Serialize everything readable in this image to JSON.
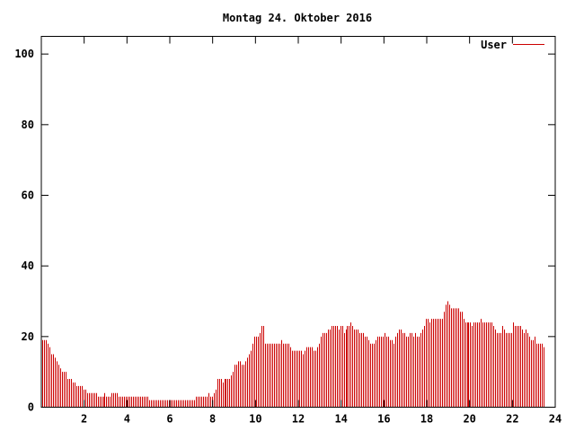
{
  "chart_data": {
    "type": "bar",
    "title": "Montag 24. Oktober 2016",
    "xlabel": "",
    "ylabel": "",
    "xlim": [
      0,
      24
    ],
    "ylim": [
      0,
      105
    ],
    "x_ticks": [
      2,
      4,
      6,
      8,
      10,
      12,
      14,
      16,
      18,
      20,
      22,
      24
    ],
    "x_tick_labels": [
      "2",
      "4",
      "6",
      "8",
      "10",
      "12",
      "14",
      "16",
      "18",
      "20",
      "22",
      "24"
    ],
    "y_ticks": [
      0,
      20,
      40,
      60,
      80,
      100
    ],
    "y_tick_labels": [
      "0",
      "20",
      "40",
      "60",
      "80",
      "100"
    ],
    "grid": false,
    "legend_position": "top-right",
    "series": [
      {
        "name": "User",
        "color": "#cc0000",
        "x_step_hours": 0.0833,
        "values": [
          19,
          19,
          19,
          18,
          17,
          15,
          15,
          14,
          13,
          12,
          11,
          10,
          10,
          10,
          8,
          8,
          8,
          7,
          7,
          6,
          6,
          6,
          6,
          5,
          5,
          4,
          4,
          4,
          4,
          4,
          4,
          3,
          3,
          3,
          3,
          4,
          3,
          3,
          3,
          4,
          4,
          4,
          4,
          3,
          3,
          3,
          3,
          3,
          3,
          3,
          3,
          3,
          3,
          3,
          3,
          3,
          3,
          3,
          3,
          3,
          2,
          2,
          2,
          2,
          2,
          2,
          2,
          2,
          2,
          2,
          2,
          2,
          2,
          2,
          2,
          2,
          2,
          2,
          2,
          2,
          2,
          2,
          2,
          2,
          2,
          2,
          3,
          3,
          3,
          3,
          3,
          3,
          3,
          4,
          3,
          3,
          4,
          5,
          8,
          8,
          8,
          7,
          8,
          8,
          8,
          8,
          9,
          10,
          12,
          12,
          13,
          13,
          12,
          12,
          13,
          14,
          15,
          16,
          18,
          20,
          20,
          20,
          21,
          23,
          23,
          18,
          18,
          18,
          18,
          18,
          18,
          18,
          18,
          18,
          19,
          18,
          18,
          18,
          18,
          17,
          16,
          16,
          16,
          16,
          16,
          16,
          15,
          16,
          17,
          17,
          17,
          17,
          16,
          16,
          17,
          18,
          20,
          21,
          21,
          21,
          22,
          22,
          23,
          23,
          23,
          23,
          22,
          23,
          23,
          21,
          22,
          23,
          23,
          24,
          23,
          22,
          22,
          22,
          21,
          21,
          21,
          20,
          20,
          19,
          18,
          18,
          18,
          19,
          20,
          20,
          20,
          20,
          21,
          20,
          20,
          19,
          19,
          18,
          20,
          21,
          22,
          22,
          21,
          21,
          20,
          20,
          21,
          21,
          20,
          21,
          20,
          20,
          21,
          22,
          23,
          25,
          25,
          24,
          25,
          25,
          25,
          25,
          25,
          25,
          25,
          27,
          29,
          30,
          29,
          28,
          28,
          28,
          28,
          28,
          27,
          27,
          25,
          24,
          24,
          24,
          24,
          23,
          24,
          24,
          24,
          24,
          25,
          24,
          24,
          24,
          24,
          24,
          24,
          23,
          22,
          21,
          21,
          21,
          23,
          22,
          21,
          21,
          21,
          21,
          24,
          23,
          23,
          23,
          23,
          22,
          21,
          22,
          21,
          20,
          19,
          19,
          20,
          18,
          18,
          18,
          18,
          17
        ]
      }
    ]
  }
}
